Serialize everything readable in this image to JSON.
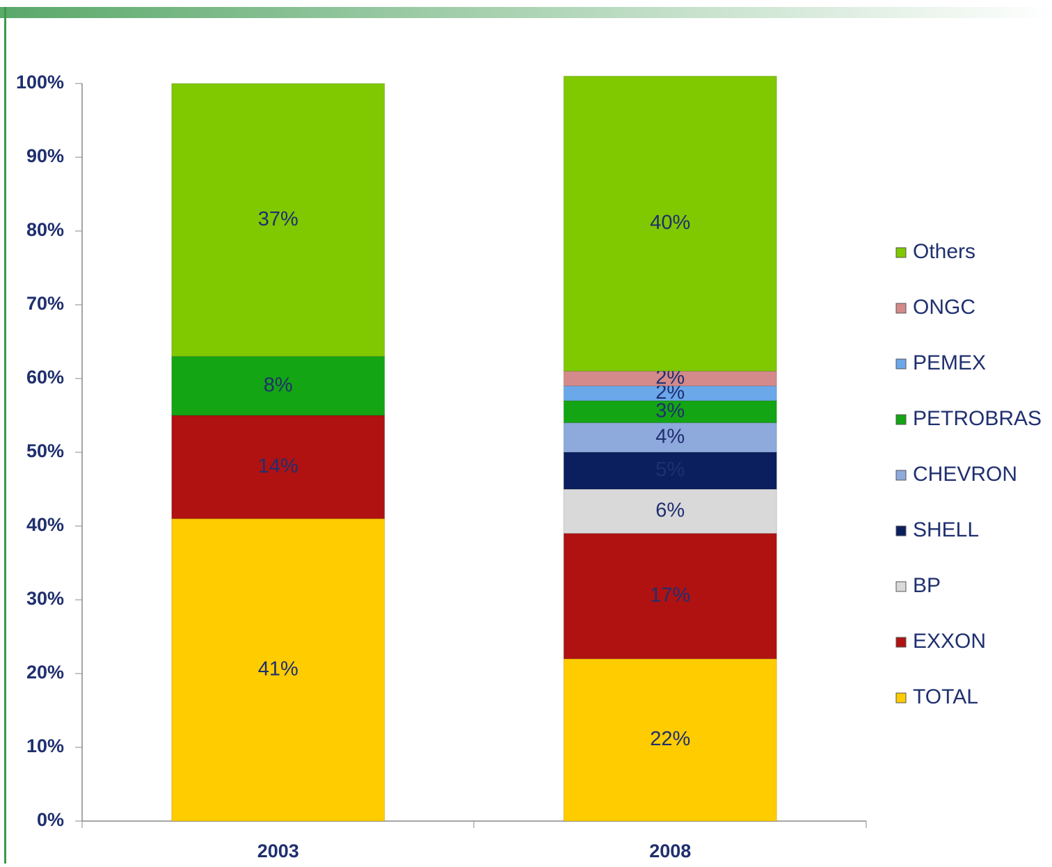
{
  "chart_data": {
    "type": "stacked_bar",
    "categories": [
      "2003",
      "2008"
    ],
    "series": [
      {
        "name": "TOTAL",
        "color": "#ffcc00",
        "values": [
          41,
          22
        ],
        "value_labels": [
          "41%",
          "22%"
        ]
      },
      {
        "name": "EXXON",
        "color": "#b01212",
        "values": [
          14,
          17
        ],
        "value_labels": [
          "14%",
          "17%"
        ]
      },
      {
        "name": "BP",
        "color": "#d9d9d9",
        "values": [
          null,
          6
        ],
        "value_labels": [
          null,
          "6%"
        ]
      },
      {
        "name": "SHELL",
        "color": "#0b1f5e",
        "values": [
          null,
          5
        ],
        "value_labels": [
          null,
          "5%"
        ]
      },
      {
        "name": "CHEVRON",
        "color": "#8ea9dc",
        "values": [
          null,
          4
        ],
        "value_labels": [
          null,
          "4%"
        ]
      },
      {
        "name": "PETROBRAS",
        "color": "#14a514",
        "values": [
          8,
          3
        ],
        "value_labels": [
          "8%",
          "3%"
        ]
      },
      {
        "name": "PEMEX",
        "color": "#6aa8ea",
        "values": [
          null,
          2
        ],
        "value_labels": [
          null,
          "2%"
        ]
      },
      {
        "name": "ONGC",
        "color": "#d48a8a",
        "values": [
          null,
          2
        ],
        "value_labels": [
          null,
          "2%"
        ]
      },
      {
        "name": "Others",
        "color": "#80c800",
        "values": [
          37,
          40
        ],
        "value_labels": [
          "37%",
          "40%"
        ]
      }
    ],
    "ylim": [
      0,
      100
    ],
    "yticks": [
      {
        "value": 0,
        "label": "0%"
      },
      {
        "value": 10,
        "label": "10%"
      },
      {
        "value": 20,
        "label": "20%"
      },
      {
        "value": 30,
        "label": "30%"
      },
      {
        "value": 40,
        "label": "40%"
      },
      {
        "value": 50,
        "label": "50%"
      },
      {
        "value": 60,
        "label": "60%"
      },
      {
        "value": 70,
        "label": "70%"
      },
      {
        "value": 80,
        "label": "80%"
      },
      {
        "value": 90,
        "label": "90%"
      },
      {
        "value": 100,
        "label": "100%"
      }
    ],
    "legend": "right"
  }
}
